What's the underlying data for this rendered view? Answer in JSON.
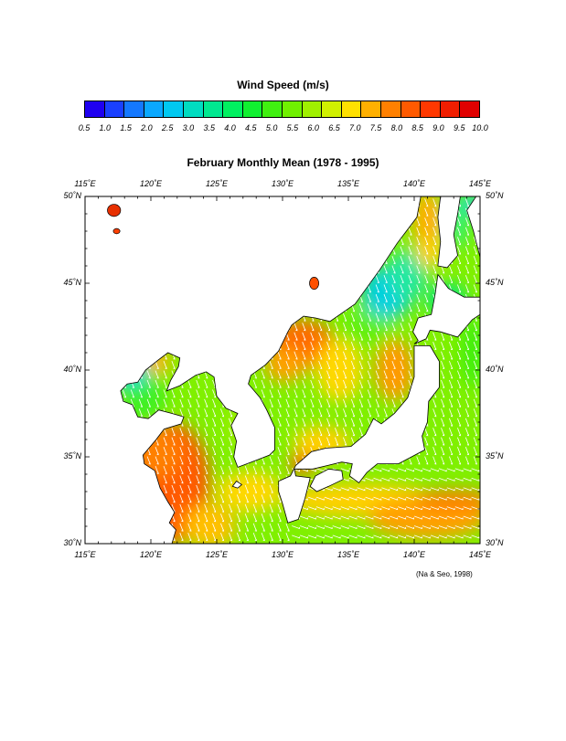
{
  "colorbar": {
    "title": "Wind Speed (m/s)",
    "ticks": [
      "0.5",
      "1.0",
      "1.5",
      "2.0",
      "2.5",
      "3.0",
      "3.5",
      "4.0",
      "4.5",
      "5.0",
      "5.5",
      "6.0",
      "6.5",
      "7.0",
      "7.5",
      "8.0",
      "8.5",
      "9.0",
      "9.5",
      "10.0"
    ],
    "colors": [
      "#1f00f0",
      "#1a40ff",
      "#1478ff",
      "#0aa8ff",
      "#00c8f0",
      "#00dcc0",
      "#00e890",
      "#00f060",
      "#10f030",
      "#40f010",
      "#70f000",
      "#a0f000",
      "#d0f000",
      "#ffe000",
      "#ffb000",
      "#ff8000",
      "#ff5a00",
      "#ff3800",
      "#f01e00",
      "#e00000"
    ]
  },
  "map": {
    "title": "February Monthly Mean (1978 - 1995)",
    "lon_labels": [
      "115˚E",
      "120˚E",
      "125˚E",
      "130˚E",
      "135˚E",
      "140˚E",
      "145˚E"
    ],
    "lat_labels": [
      "50˚N",
      "45˚N",
      "40˚N",
      "35˚N",
      "30˚N"
    ],
    "lon_range": [
      115,
      145
    ],
    "lat_range": [
      30,
      50
    ],
    "credit": "(Na & Seo, 1998)",
    "arrow_color": "#ffffff",
    "dominant_wind": "north-northwest"
  }
}
